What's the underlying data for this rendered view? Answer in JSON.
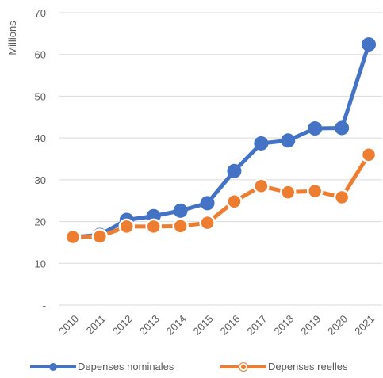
{
  "chart_data": {
    "type": "line",
    "ylabel": "Millions",
    "ylim": [
      0,
      70
    ],
    "y_ticks": [
      "-",
      "10",
      "20",
      "30",
      "40",
      "50",
      "60",
      "70"
    ],
    "categories": [
      "2010",
      "2011",
      "2012",
      "2013",
      "2014",
      "2015",
      "2016",
      "2017",
      "2018",
      "2019",
      "2020",
      "2021"
    ],
    "grid": true,
    "legend_position": "bottom",
    "series": [
      {
        "name": "Depenses nominales",
        "color": "#4472c4",
        "values": [
          16.3,
          16.8,
          20.4,
          21.3,
          22.6,
          24.4,
          32.1,
          38.7,
          39.4,
          42.3,
          42.4,
          62.4
        ]
      },
      {
        "name": "Depenses reelles",
        "color": "#ed7d31",
        "values": [
          16.3,
          16.4,
          18.8,
          18.8,
          18.9,
          19.7,
          24.8,
          28.5,
          27.0,
          27.3,
          25.8,
          36.0
        ]
      }
    ]
  }
}
